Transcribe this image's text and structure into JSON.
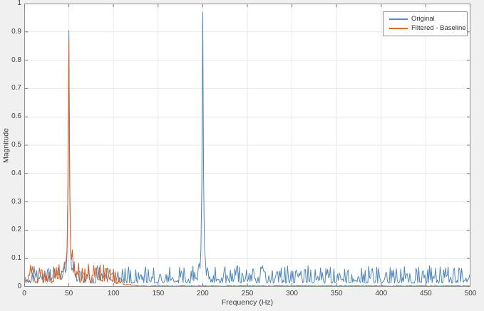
{
  "window": {
    "background_color": "#f0f0f0",
    "plot_background_color": "#ffffff",
    "grid_color": "#e9e9e9",
    "box_color": "#8f8f8f",
    "tick_color": "#7a7a7a",
    "text_color": "#3f3f3f"
  },
  "chart_data": {
    "type": "line",
    "title": "",
    "xlabel": "Frequency (Hz)",
    "ylabel": "Magnitude",
    "xlim": [
      0,
      500
    ],
    "ylim": [
      0,
      1
    ],
    "x_step": 1,
    "xticks": [
      0,
      50,
      100,
      150,
      200,
      250,
      300,
      350,
      400,
      450,
      500
    ],
    "yticks": [
      0,
      0.1,
      0.2,
      0.3,
      0.4,
      0.5,
      0.6,
      0.7,
      0.8,
      0.9,
      1
    ],
    "grid": true,
    "tick_direction": "in",
    "box": true,
    "legend": {
      "position": "northeast",
      "entries": [
        {
          "label": "Original",
          "color": "#5089c4"
        },
        {
          "label": "Filtered - Baseline",
          "color": "#dd6b30"
        }
      ]
    },
    "series": [
      {
        "name": "Original",
        "color": "#4d86be",
        "seed": 11,
        "noise": {
          "base": 0.013,
          "amp": 0.062,
          "skew": 2.0
        },
        "peaks": [
          {
            "freq": 50,
            "magnitude": 0.905,
            "core_width": 0.8,
            "skirt": 0.045,
            "skirt_sigma": 5
          },
          {
            "freq": 200,
            "magnitude": 0.97,
            "core_width": 0.8,
            "skirt": 0.05,
            "skirt_sigma": 4
          }
        ]
      },
      {
        "name": "Filtered - Baseline",
        "color": "#da5f22",
        "seed": 29,
        "noise": {
          "base": 0.013,
          "amp": 0.068,
          "skew": 1.9
        },
        "peaks": [
          {
            "freq": 50,
            "magnitude": 0.875,
            "core_width": 0.85,
            "skirt": 0.065,
            "skirt_sigma": 5
          }
        ],
        "filter": {
          "passband_end": 95,
          "stopband_start": 132,
          "stopband_floor": 0.003
        }
      }
    ]
  }
}
